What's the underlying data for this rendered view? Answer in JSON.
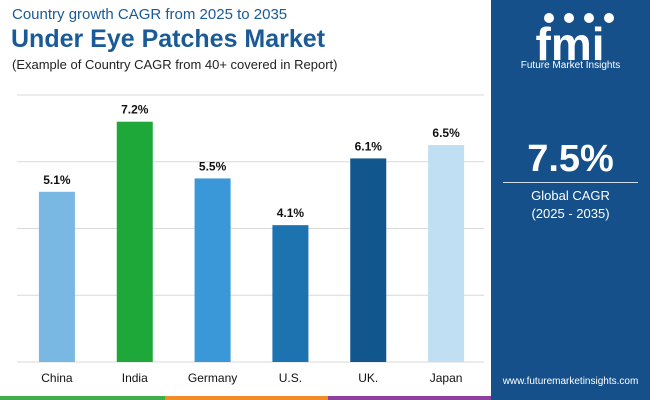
{
  "header": {
    "supertitle": "Country growth CAGR from 2025 to 2035",
    "title": "Under Eye Patches Market",
    "subtitle": "(Example of Country CAGR from 40+ covered in Report)"
  },
  "sidebar": {
    "logo_text": "fmi",
    "brand": "Future Market Insights",
    "cagr_value": "7.5%",
    "cagr_label": "Global CAGR",
    "cagr_period": "(2025 - 2035)",
    "website": "www.futuremarketinsights.com"
  },
  "chart_data": {
    "type": "bar",
    "categories": [
      "China",
      "India",
      "Germany",
      "U.S.",
      "UK.",
      "Japan"
    ],
    "values": [
      5.1,
      7.2,
      5.5,
      4.1,
      6.1,
      6.5
    ],
    "data_labels": [
      "5.1%",
      "7.2%",
      "5.5%",
      "4.1%",
      "6.1%",
      "6.5%"
    ],
    "colors": [
      "#7ab8e4",
      "#1ea83a",
      "#3a97d8",
      "#1d72b0",
      "#12568e",
      "#c0dff3"
    ],
    "ylim": [
      0,
      8
    ],
    "grid": true,
    "legend": "none"
  },
  "colors": {
    "accent": "#1a5a96",
    "panel": "#15508a",
    "stripes": [
      "#3fae49",
      "#f28c28",
      "#8e3fa0"
    ]
  }
}
